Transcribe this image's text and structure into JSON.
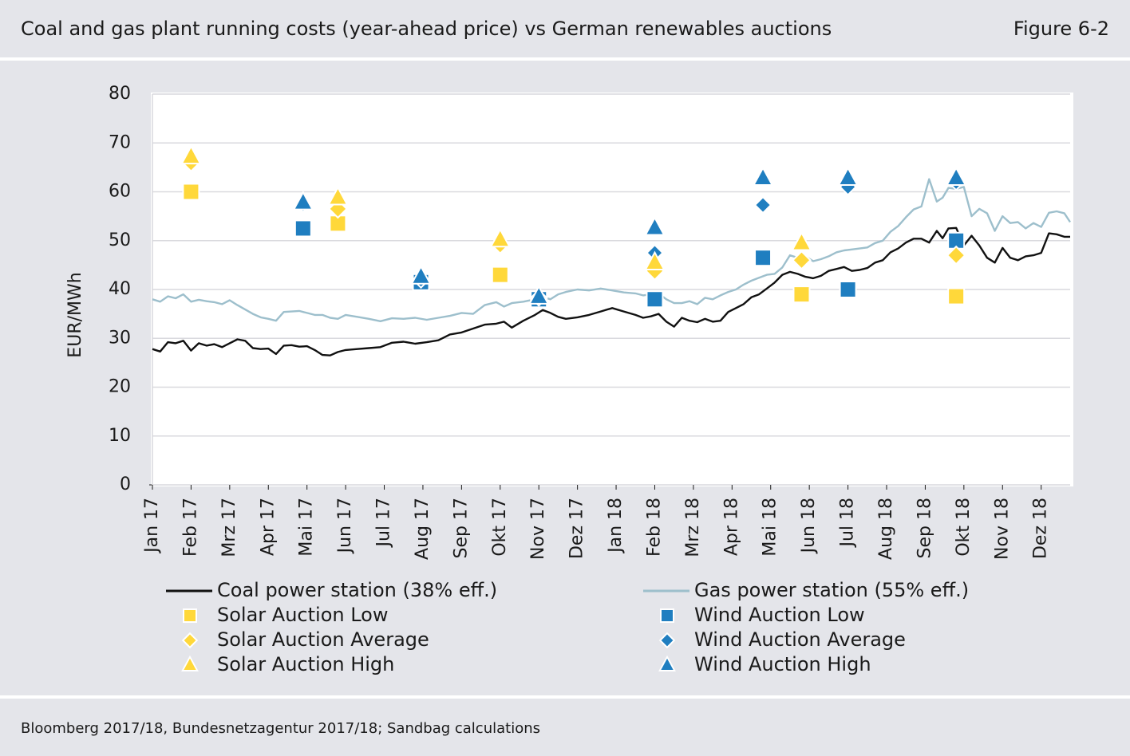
{
  "header": {
    "title": "Coal and gas plant running costs (year-ahead price) vs German renewables auctions",
    "figure_label": "Figure 6-2"
  },
  "footer": {
    "source": "Bloomberg 2017/18, Bundesnetzagentur 2017/18; Sandbag calculations"
  },
  "chart_data": {
    "type": "line",
    "title": "Coal and gas plant running costs (year-ahead price) vs German renewables auctions",
    "xlabel": "",
    "ylabel": "EUR/MWh",
    "ylim": [
      0,
      80
    ],
    "yticks": [
      0,
      10,
      20,
      30,
      40,
      50,
      60,
      70,
      80
    ],
    "xlim": [
      0,
      23.75
    ],
    "x_tick_labels": [
      "Jan 17",
      "Feb 17",
      "Mrz 17",
      "Apr 17",
      "Mai 17",
      "Jun 17",
      "Jul 17",
      "Aug 17",
      "Sep 17",
      "Okt 17",
      "Nov 17",
      "Dez 17",
      "Jan 18",
      "Feb 18",
      "Mrz 18",
      "Apr 18",
      "Mai 18",
      "Jun 18",
      "Jul 18",
      "Aug 18",
      "Sep 18",
      "Okt 18",
      "Nov 18",
      "Dez 18"
    ],
    "grid": true,
    "legend_position": "bottom",
    "colors": {
      "coal": "#111111",
      "gas": "#9dbfcc",
      "solar": "#ffd83a",
      "wind": "#1f7ec0"
    },
    "series": [
      {
        "name": "Coal power station (38% eff.)",
        "kind": "line",
        "x": [
          0,
          0.2,
          0.4,
          0.6,
          0.8,
          1.0,
          1.2,
          1.4,
          1.6,
          1.8,
          2.0,
          2.2,
          2.4,
          2.6,
          2.8,
          3.0,
          3.2,
          3.4,
          3.6,
          3.8,
          4.0,
          4.2,
          4.4,
          4.6,
          4.8,
          5.0,
          5.3,
          5.6,
          5.9,
          6.2,
          6.5,
          6.8,
          7.1,
          7.4,
          7.7,
          8.0,
          8.3,
          8.6,
          8.9,
          9.1,
          9.3,
          9.6,
          9.9,
          10.1,
          10.3,
          10.5,
          10.7,
          11.0,
          11.3,
          11.6,
          11.9,
          12.2,
          12.5,
          12.7,
          12.9,
          13.1,
          13.3,
          13.5,
          13.7,
          13.9,
          14.1,
          14.3,
          14.5,
          14.7,
          14.9,
          15.1,
          15.3,
          15.5,
          15.7,
          15.9,
          16.1,
          16.3,
          16.5,
          16.7,
          16.9,
          17.1,
          17.3,
          17.5,
          17.7,
          17.9,
          18.1,
          18.3,
          18.5,
          18.7,
          18.9,
          19.1,
          19.3,
          19.5,
          19.7,
          19.9,
          20.1,
          20.3,
          20.45,
          20.6,
          20.8,
          21.0,
          21.2,
          21.4,
          21.6,
          21.8,
          22.0,
          22.2,
          22.4,
          22.6,
          22.8,
          23.0,
          23.2,
          23.4,
          23.6,
          23.75
        ],
        "values": [
          27.8,
          27.3,
          29.2,
          29.0,
          29.5,
          27.5,
          29.0,
          28.5,
          28.8,
          28.2,
          29.0,
          29.8,
          29.5,
          28.0,
          27.8,
          27.9,
          26.8,
          28.5,
          28.6,
          28.3,
          28.4,
          27.6,
          26.6,
          26.5,
          27.2,
          27.6,
          27.8,
          28.0,
          28.2,
          29.1,
          29.3,
          28.9,
          29.2,
          29.6,
          30.8,
          31.2,
          32.0,
          32.8,
          33.0,
          33.4,
          32.2,
          33.6,
          34.8,
          35.8,
          35.2,
          34.4,
          34.0,
          34.3,
          34.8,
          35.5,
          36.2,
          35.5,
          34.8,
          34.2,
          34.5,
          35.0,
          33.4,
          32.4,
          34.2,
          33.6,
          33.3,
          34.0,
          33.4,
          33.6,
          35.4,
          36.2,
          37.0,
          38.4,
          39.0,
          40.2,
          41.4,
          43.0,
          43.6,
          43.2,
          42.6,
          42.3,
          42.8,
          43.8,
          44.2,
          44.6,
          43.8,
          44.0,
          44.4,
          45.5,
          46.0,
          47.6,
          48.4,
          49.6,
          50.4,
          50.4,
          49.6,
          52.0,
          50.5,
          52.5,
          52.6,
          49.0,
          51.0,
          49.0,
          46.5,
          45.5,
          48.5,
          46.5,
          46.0,
          46.8,
          47.0,
          47.5,
          51.5,
          51.3,
          50.8,
          50.8
        ]
      },
      {
        "name": "Gas power station (55% eff.)",
        "kind": "line",
        "x": [
          0,
          0.2,
          0.4,
          0.6,
          0.8,
          1.0,
          1.2,
          1.4,
          1.6,
          1.8,
          2.0,
          2.2,
          2.4,
          2.6,
          2.8,
          3.0,
          3.2,
          3.4,
          3.6,
          3.8,
          4.0,
          4.2,
          4.4,
          4.6,
          4.8,
          5.0,
          5.3,
          5.6,
          5.9,
          6.2,
          6.5,
          6.8,
          7.1,
          7.4,
          7.7,
          8.0,
          8.3,
          8.6,
          8.9,
          9.1,
          9.3,
          9.6,
          9.9,
          10.1,
          10.3,
          10.5,
          10.7,
          11.0,
          11.3,
          11.6,
          11.9,
          12.2,
          12.5,
          12.7,
          12.9,
          13.1,
          13.3,
          13.5,
          13.7,
          13.9,
          14.1,
          14.3,
          14.5,
          14.7,
          14.9,
          15.1,
          15.3,
          15.5,
          15.7,
          15.9,
          16.1,
          16.3,
          16.5,
          16.7,
          16.9,
          17.1,
          17.3,
          17.5,
          17.7,
          17.9,
          18.1,
          18.3,
          18.5,
          18.7,
          18.9,
          19.1,
          19.3,
          19.5,
          19.7,
          19.9,
          20.1,
          20.3,
          20.45,
          20.6,
          20.8,
          21.0,
          21.2,
          21.4,
          21.6,
          21.8,
          22.0,
          22.2,
          22.4,
          22.6,
          22.8,
          23.0,
          23.2,
          23.4,
          23.6,
          23.75
        ],
        "values": [
          38.0,
          37.5,
          38.6,
          38.2,
          39.0,
          37.5,
          37.9,
          37.6,
          37.4,
          37.0,
          37.8,
          36.8,
          35.9,
          35.0,
          34.3,
          34.0,
          33.6,
          35.4,
          35.5,
          35.6,
          35.2,
          34.8,
          34.8,
          34.2,
          34.0,
          34.8,
          34.4,
          34.0,
          33.5,
          34.1,
          34.0,
          34.2,
          33.8,
          34.2,
          34.6,
          35.2,
          35.0,
          36.8,
          37.4,
          36.5,
          37.2,
          37.5,
          38.0,
          38.5,
          38.0,
          39.0,
          39.5,
          40.0,
          39.8,
          40.2,
          39.8,
          39.4,
          39.2,
          38.8,
          39.0,
          39.2,
          38.0,
          37.2,
          37.2,
          37.6,
          37.0,
          38.3,
          38.0,
          38.8,
          39.5,
          40.0,
          41.0,
          41.8,
          42.4,
          43.0,
          43.2,
          44.5,
          47.0,
          46.5,
          46.8,
          45.8,
          46.2,
          46.8,
          47.6,
          48.0,
          48.2,
          48.4,
          48.6,
          49.5,
          50.0,
          51.8,
          53.0,
          54.8,
          56.4,
          57.0,
          62.6,
          58.0,
          58.8,
          60.8,
          60.6,
          61.0,
          55.0,
          56.5,
          55.6,
          52.0,
          55.0,
          53.6,
          53.8,
          52.5,
          53.6,
          52.8,
          55.7,
          56.0,
          55.6,
          53.8
        ]
      },
      {
        "name": "Solar Auction Low",
        "kind": "marker",
        "marker": "square",
        "x": [
          1.0,
          4.8,
          9.0,
          16.8,
          20.8
        ],
        "values": [
          60.0,
          53.5,
          43.0,
          39.0,
          38.6
        ]
      },
      {
        "name": "Solar Auction Average",
        "kind": "marker",
        "marker": "diamond",
        "x": [
          1.0,
          4.8,
          9.0,
          13.0,
          16.8,
          20.8
        ],
        "values": [
          66.0,
          56.5,
          49.2,
          43.8,
          46.0,
          47.0
        ]
      },
      {
        "name": "Solar Auction High",
        "kind": "marker",
        "marker": "triangle",
        "x": [
          1.0,
          4.8,
          9.0,
          13.0,
          16.8
        ],
        "values": [
          67.2,
          58.8,
          50.2,
          45.5,
          49.5
        ]
      },
      {
        "name": "Wind Auction Low",
        "kind": "marker",
        "marker": "square",
        "x": [
          3.9,
          6.95,
          10.0,
          13.0,
          15.8,
          18.0,
          20.8
        ],
        "values": [
          52.5,
          41.5,
          38.0,
          38.0,
          46.5,
          40.0,
          50.0
        ]
      },
      {
        "name": "Wind Auction Average",
        "kind": "marker",
        "marker": "diamond",
        "x": [
          3.9,
          6.95,
          10.0,
          13.0,
          15.8,
          18.0,
          20.8
        ],
        "values": [
          57.5,
          42.0,
          38.3,
          47.5,
          57.3,
          61.0,
          62.0
        ]
      },
      {
        "name": "Wind Auction High",
        "kind": "marker",
        "marker": "triangle",
        "x": [
          3.9,
          6.95,
          10.0,
          13.0,
          15.8,
          18.0,
          20.8
        ],
        "values": [
          57.8,
          42.6,
          38.5,
          52.6,
          62.8,
          62.8,
          62.8
        ]
      }
    ]
  }
}
